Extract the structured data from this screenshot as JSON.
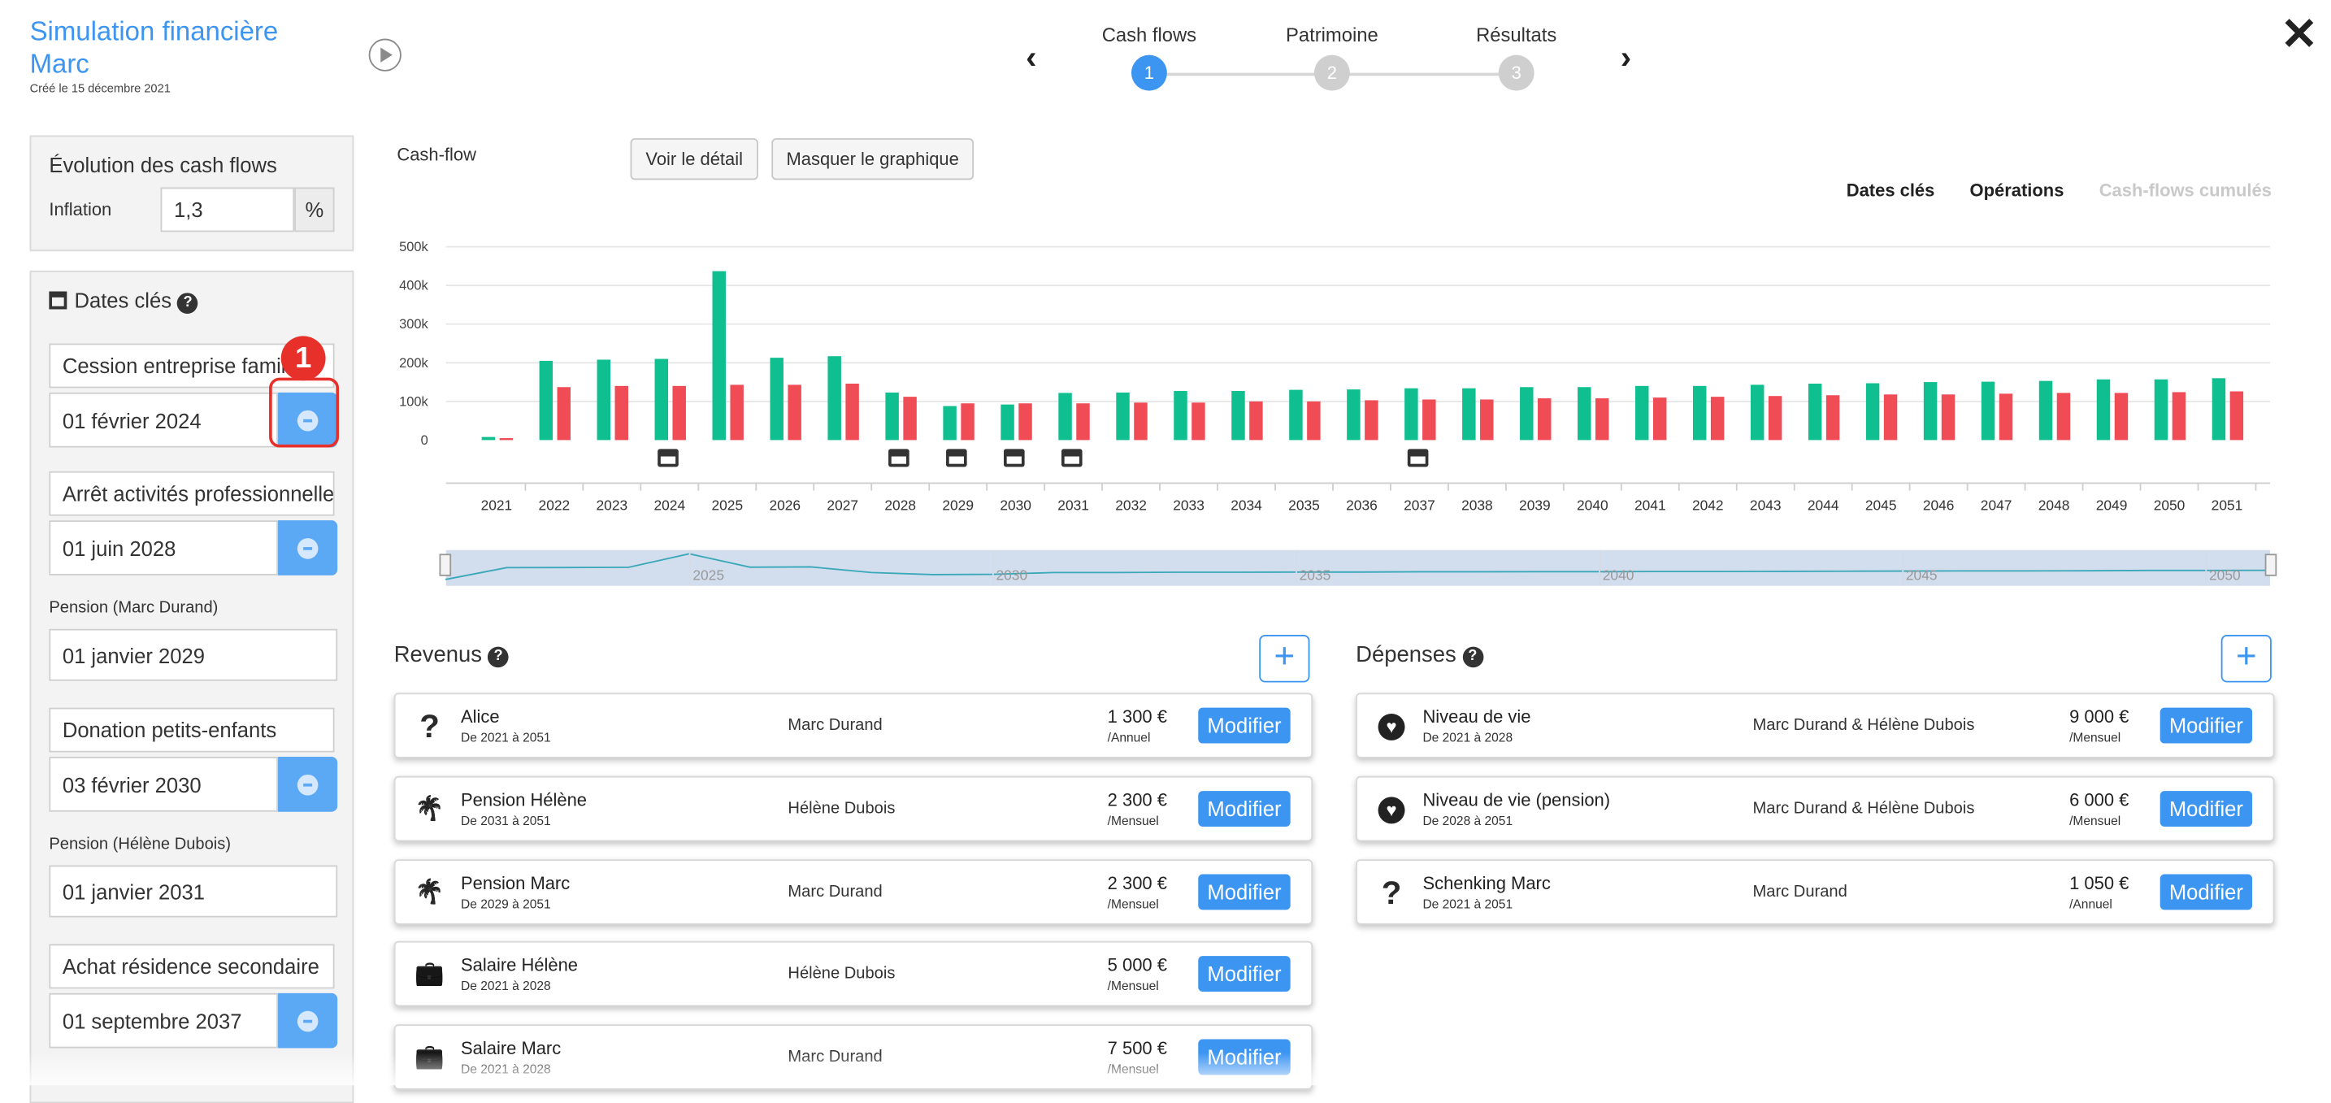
{
  "header": {
    "title": "Simulation financière",
    "title_name": "Marc",
    "created": "Créé le 15 décembre 2021",
    "steps": [
      {
        "label": "Cash flows",
        "num": "1",
        "active": true
      },
      {
        "label": "Patrimoine",
        "num": "2",
        "active": false
      },
      {
        "label": "Résultats",
        "num": "3",
        "active": false
      }
    ]
  },
  "evolution": {
    "title": "Évolution des cash flows",
    "inflation_label": "Inflation",
    "inflation_value": "1,3",
    "unit": "%"
  },
  "dates": {
    "title": "Dates clés",
    "items": [
      {
        "label": "Cession entreprise familiale",
        "date": "01 février 2024",
        "removable": true,
        "highlight": true
      },
      {
        "label": "Arrêt activités professionnelles",
        "date": "01 juin 2028",
        "removable": true
      },
      {
        "label": "Pension (Marc Durand)",
        "date": "01 janvier 2029",
        "removable": false
      },
      {
        "label": "Donation petits-enfants",
        "date": "03 février 2030",
        "removable": true
      },
      {
        "label": "Pension (Hélène Dubois)",
        "date": "01 janvier 2031",
        "removable": false
      },
      {
        "label": "Achat résidence secondaire",
        "date": "01 septembre 2037",
        "removable": true
      }
    ],
    "callout": "1"
  },
  "chart_section": {
    "label": "Cash-flow",
    "btn_detail": "Voir le détail",
    "btn_hide": "Masquer le graphique",
    "toggles": [
      "Dates clés",
      "Opérations",
      "Cash-flows cumulés"
    ]
  },
  "chart_data": {
    "type": "bar",
    "categories": [
      "2021",
      "2022",
      "2023",
      "2024",
      "2025",
      "2026",
      "2027",
      "2028",
      "2029",
      "2030",
      "2031",
      "2032",
      "2033",
      "2034",
      "2035",
      "2036",
      "2037",
      "2038",
      "2039",
      "2040",
      "2041",
      "2042",
      "2043",
      "2044",
      "2045",
      "2046",
      "2047",
      "2048",
      "2049",
      "2050",
      "2051"
    ],
    "series": [
      {
        "color": "#0fbf8f",
        "values": [
          8,
          205,
          208,
          210,
          437,
          213,
          217,
          123,
          88,
          92,
          122,
          123,
          127,
          127,
          130,
          131,
          134,
          134,
          137,
          137,
          140,
          140,
          143,
          146,
          147,
          150,
          151,
          153,
          157,
          157,
          160
        ]
      },
      {
        "color": "#f04c56",
        "values": [
          5,
          137,
          140,
          140,
          143,
          143,
          146,
          112,
          95,
          95,
          95,
          97,
          97,
          100,
          100,
          103,
          105,
          105,
          108,
          108,
          110,
          112,
          114,
          116,
          118,
          118,
          120,
          122,
          122,
          124,
          126
        ]
      }
    ],
    "y_ticks": [
      "500k",
      "400k",
      "300k",
      "200k",
      "100k",
      "0"
    ],
    "ylim": [
      0,
      500
    ],
    "key_date_years": [
      "2024",
      "2028",
      "2029",
      "2030",
      "2031",
      "2037"
    ],
    "navigator_labels": [
      "2025",
      "2030",
      "2035",
      "2040",
      "2045",
      "2050"
    ],
    "grid": true
  },
  "revenus": {
    "title": "Revenus",
    "add": "+",
    "items": [
      {
        "icon": "question-icon",
        "name": "Alice",
        "period": "De 2021 à 2051",
        "owner": "Marc Durand",
        "amount": "1 300 €",
        "freq": "/Annuel",
        "action": "Modifier"
      },
      {
        "icon": "palm-tree-icon",
        "name": "Pension Hélène",
        "period": "De 2031 à 2051",
        "owner": "Hélène Dubois",
        "amount": "2 300 €",
        "freq": "/Mensuel",
        "action": "Modifier"
      },
      {
        "icon": "palm-tree-icon",
        "name": "Pension Marc",
        "period": "De 2029 à 2051",
        "owner": "Marc Durand",
        "amount": "2 300 €",
        "freq": "/Mensuel",
        "action": "Modifier"
      },
      {
        "icon": "briefcase-icon",
        "name": "Salaire Hélène",
        "period": "De 2021 à 2028",
        "owner": "Hélène Dubois",
        "amount": "5 000 €",
        "freq": "/Mensuel",
        "action": "Modifier"
      },
      {
        "icon": "briefcase-icon",
        "name": "Salaire Marc",
        "period": "De 2021 à 2028",
        "owner": "Marc Durand",
        "amount": "7 500 €",
        "freq": "/Mensuel",
        "action": "Modifier"
      }
    ]
  },
  "depenses": {
    "title": "Dépenses",
    "add": "+",
    "items": [
      {
        "icon": "heart-icon",
        "name": "Niveau de vie",
        "period": "De 2021 à 2028",
        "owner": "Marc Durand & Hélène Dubois",
        "amount": "9 000 €",
        "freq": "/Mensuel",
        "action": "Modifier"
      },
      {
        "icon": "heart-icon",
        "name": "Niveau de vie (pension)",
        "period": "De 2028 à 2051",
        "owner": "Marc Durand & Hélène Dubois",
        "amount": "6 000 €",
        "freq": "/Mensuel",
        "action": "Modifier"
      },
      {
        "icon": "question-icon",
        "name": "Schenking Marc",
        "period": "De 2021 à 2051",
        "owner": "Marc Durand",
        "amount": "1 050 €",
        "freq": "/Annuel",
        "action": "Modifier"
      }
    ]
  }
}
